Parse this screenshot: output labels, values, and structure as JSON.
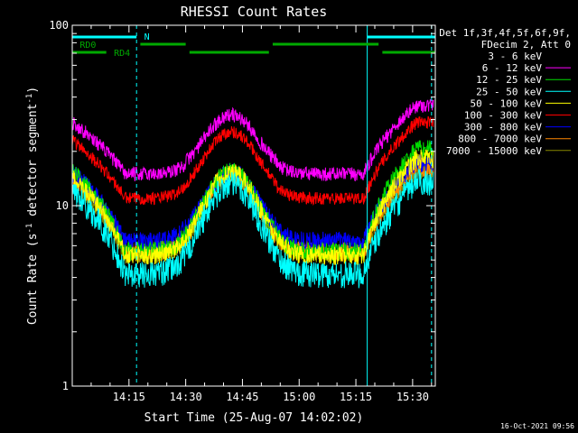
{
  "chart_data": {
    "type": "line",
    "title": "RHESSI Count Rates",
    "xlabel": "Start Time (25-Aug-07 14:02:02)",
    "ylabel_main": "Count Rate (s",
    "ylabel_sup1": "-1",
    "ylabel_mid": " detector segment",
    "ylabel_sup2": "-1",
    "ylabel_end": ")",
    "yscale": "log",
    "ylim": [
      1,
      100
    ],
    "xlim_minutes": [
      0,
      96
    ],
    "x_ticks": [
      {
        "min": 15,
        "label": "14:15"
      },
      {
        "min": 30,
        "label": "14:30"
      },
      {
        "min": 45,
        "label": "14:45"
      },
      {
        "min": 60,
        "label": "15:00"
      },
      {
        "min": 75,
        "label": "15:15"
      },
      {
        "min": 90,
        "label": "15:30"
      }
    ],
    "y_ticks": [
      {
        "v": 1,
        "label": "1"
      },
      {
        "v": 10,
        "label": "10"
      },
      {
        "v": 100,
        "label": "100"
      }
    ],
    "legend_header": [
      "Det 1f,3f,4f,5f,6f,9f,",
      "FDecim 2, Att 0"
    ],
    "series": [
      {
        "name": "3 - 6 keV",
        "color": "#000000"
      },
      {
        "name": "6 - 12 keV",
        "color": "#ff00ff"
      },
      {
        "name": "12 - 25 keV",
        "color": "#00dd00"
      },
      {
        "name": "25 - 50 keV",
        "color": "#00ffff"
      },
      {
        "name": "50 - 100 keV",
        "color": "#ffff00"
      },
      {
        "name": "100 - 300 keV",
        "color": "#ff0000"
      },
      {
        "name": "300 - 800 keV",
        "color": "#0000ff"
      },
      {
        "name": "800 - 7000 keV",
        "color": "#ff8800"
      },
      {
        "name": "7000 - 15000 keV",
        "color": "#888800"
      }
    ],
    "flags": [
      {
        "label": "N",
        "color": "#00ffff",
        "label_min": 19,
        "bars": [
          [
            0,
            17
          ],
          [
            78,
            96
          ]
        ]
      },
      {
        "label": "RD0",
        "color": "#00aa00",
        "label_min": 2,
        "bars": [
          [
            18,
            30
          ],
          [
            53,
            81
          ]
        ]
      },
      {
        "label": "RD4",
        "color": "#00aa00",
        "label_min": 11,
        "bars": [
          [
            0,
            9
          ],
          [
            31,
            52
          ],
          [
            82,
            96
          ]
        ]
      }
    ],
    "vlines": [
      {
        "min": 17,
        "style": "dashed",
        "color": "#00ffff"
      },
      {
        "min": 78,
        "style": "solid",
        "color": "#00ffff"
      },
      {
        "min": 95,
        "style": "dashed",
        "color": "#00ffff"
      }
    ],
    "timestamp": "16-Oct-2021 09:56"
  }
}
